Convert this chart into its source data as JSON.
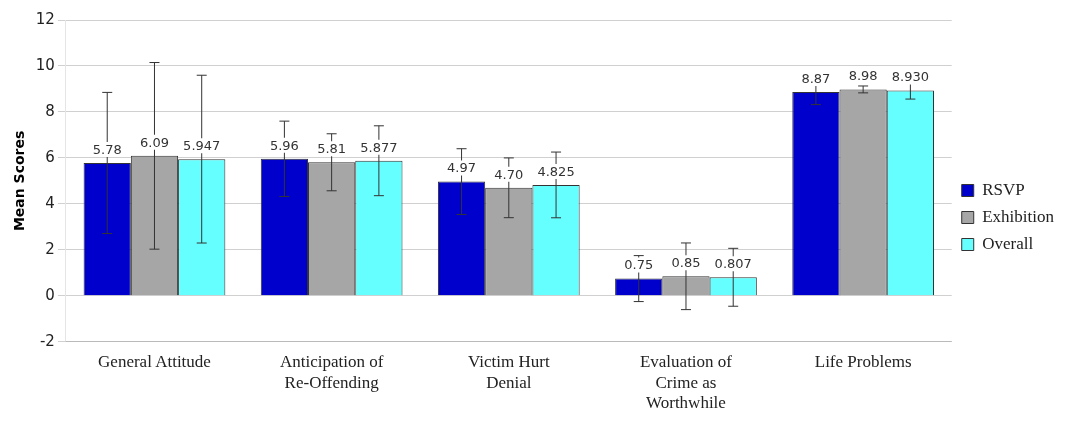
{
  "chart_data": {
    "type": "bar",
    "ylabel": "Mean Scores",
    "categories": [
      "General Attitude",
      "Anticipation of Re-Offending",
      "Victim Hurt Denial",
      "Evaluation of Crime as Worthwhile",
      "Life Problems"
    ],
    "series": [
      {
        "name": "RSVP",
        "color": "#0000cc",
        "values": [
          5.78,
          5.96,
          4.97,
          0.75,
          8.87
        ],
        "value_labels": [
          "5.78",
          "5.96",
          "4.97",
          "0.75",
          "8.87"
        ],
        "errors": [
          3.07,
          1.64,
          1.43,
          1.0,
          0.55
        ]
      },
      {
        "name": "Exhibition",
        "color": "#a6a6a6",
        "values": [
          6.09,
          5.81,
          4.7,
          0.85,
          8.98
        ],
        "value_labels": [
          "6.09",
          "5.81",
          "4.70",
          "0.85",
          "8.98"
        ],
        "errors": [
          4.06,
          1.24,
          1.3,
          1.45,
          0.15
        ]
      },
      {
        "name": "Overall",
        "color": "#66ffff",
        "values": [
          5.947,
          5.877,
          4.825,
          0.807,
          8.93
        ],
        "value_labels": [
          "5.947",
          "5.877",
          "4.825",
          "0.807",
          "8.930"
        ],
        "errors": [
          3.65,
          1.52,
          1.43,
          1.26,
          0.37
        ]
      }
    ],
    "ylim": [
      -2,
      12
    ],
    "yticks": [
      -2,
      0,
      2,
      4,
      6,
      8,
      10,
      12
    ],
    "grid": "y",
    "legend": "right"
  }
}
